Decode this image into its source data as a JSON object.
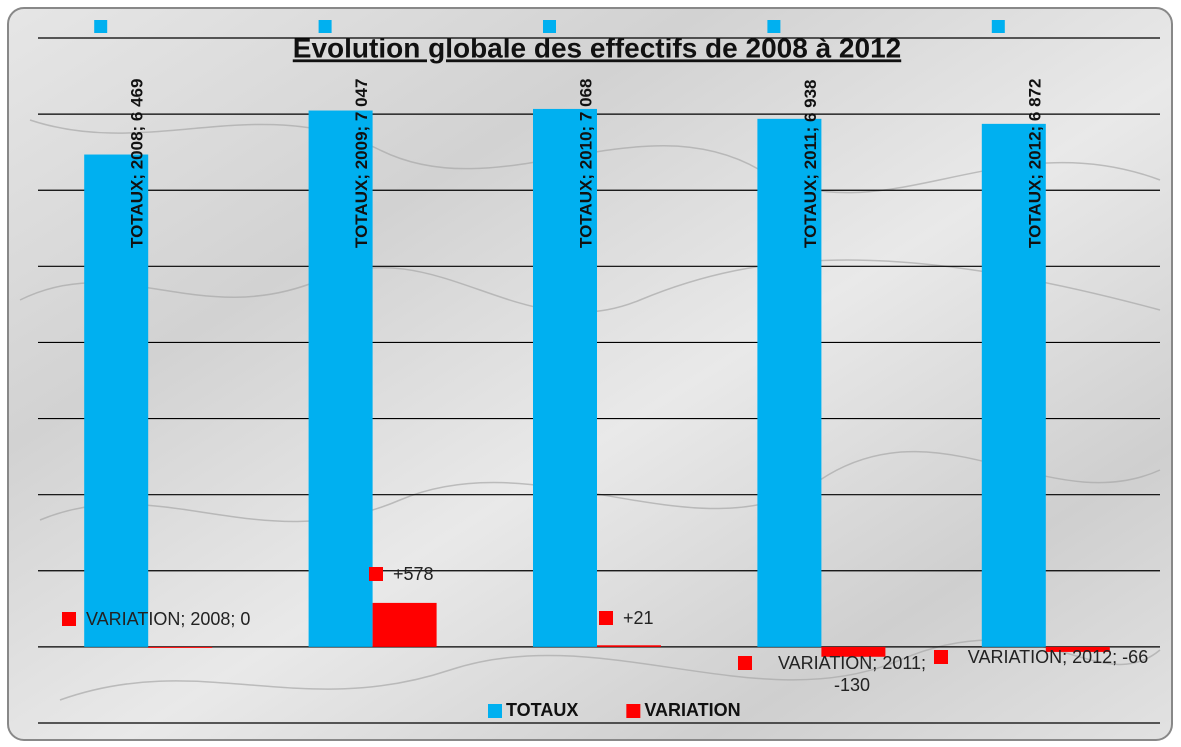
{
  "chart_data": {
    "type": "bar",
    "title": "Evolution globale des effectifs de 2008 à 2012",
    "categories": [
      "2008",
      "2009",
      "2010",
      "2011",
      "2012"
    ],
    "series": [
      {
        "name": "TOTAUX",
        "color": "#00b0f0",
        "values": [
          6469,
          7047,
          7068,
          6938,
          6872
        ],
        "value_labels": [
          "TOTAUX; 2008; 6 469",
          "TOTAUX; 2009; 7 047",
          "TOTAUX; 2010; 7 068",
          "TOTAUX; 2011; 6 938",
          "TOTAUX; 2012; 6 872"
        ]
      },
      {
        "name": "VARIATION",
        "color": "#ff0000",
        "values": [
          0,
          578,
          21,
          -130,
          -66
        ],
        "value_labels": [
          "VARIATION; 2008; 0",
          "+578",
          "+21",
          "VARIATION; 2011; -130",
          "VARIATION; 2012; -66"
        ]
      }
    ],
    "ylim": [
      -1000,
      8000
    ],
    "yticks": [
      -1000,
      0,
      1000,
      2000,
      3000,
      4000,
      5000,
      6000,
      7000,
      8000
    ],
    "grid": true,
    "legend": "bottom"
  }
}
